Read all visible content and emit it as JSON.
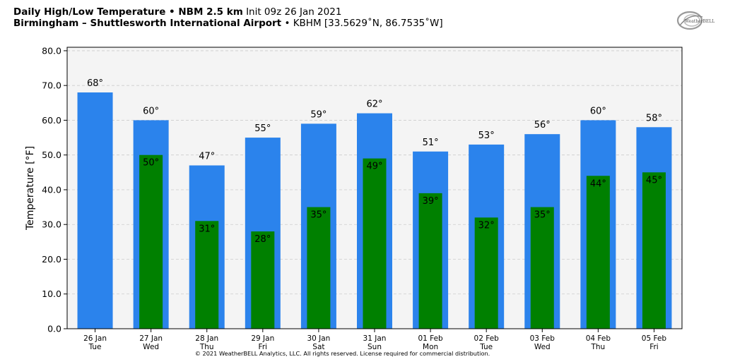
{
  "header": {
    "title_bold": "Daily High/Low Temperature • NBM 2.5 km",
    "title_init": "Init 09z 26 Jan 2021",
    "location_bold": "Birmingham – Shuttlesworth International Airport",
    "location_info": "• KBHM [33.5629˚N, 86.7535˚W]"
  },
  "logo": {
    "text": "WeatherBELL",
    "icon": "weatherbell-logo-icon"
  },
  "footer": {
    "copyright": "© 2021 WeatherBELL Analytics, LLC. All rights reserved. License required for commercial distribution."
  },
  "colors": {
    "high": "#2b83ec",
    "low": "#008000",
    "plot_bg": "#f4f4f4",
    "grid": "#cccccc"
  },
  "chart_data": {
    "type": "bar",
    "categories": [
      [
        "26 Jan",
        "Tue"
      ],
      [
        "27 Jan",
        "Wed"
      ],
      [
        "28 Jan",
        "Thu"
      ],
      [
        "29 Jan",
        "Fri"
      ],
      [
        "30 Jan",
        "Sat"
      ],
      [
        "31 Jan",
        "Sun"
      ],
      [
        "01 Feb",
        "Mon"
      ],
      [
        "02 Feb",
        "Tue"
      ],
      [
        "03 Feb",
        "Wed"
      ],
      [
        "04 Feb",
        "Thu"
      ],
      [
        "05 Feb",
        "Fri"
      ]
    ],
    "series": [
      {
        "values": [
          68,
          60,
          47,
          55,
          59,
          62,
          51,
          53,
          56,
          60,
          58
        ],
        "labels": [
          "68°",
          "60°",
          "47°",
          "55°",
          "59°",
          "62°",
          "51°",
          "53°",
          "56°",
          "60°",
          "58°"
        ]
      },
      {
        "values": [
          null,
          50,
          31,
          28,
          35,
          49,
          39,
          32,
          35,
          44,
          45
        ],
        "labels": [
          "",
          "50°",
          "31°",
          "28°",
          "35°",
          "49°",
          "39°",
          "32°",
          "35°",
          "44°",
          "45°"
        ]
      }
    ],
    "ylabel": "Temperature [°F]",
    "ylim": [
      0,
      81
    ],
    "yticks": [
      0,
      10,
      20,
      30,
      40,
      50,
      60,
      70,
      80
    ],
    "ytick_labels": [
      "0.0",
      "10.0",
      "20.0",
      "30.0",
      "40.0",
      "50.0",
      "60.0",
      "70.0",
      "80.0"
    ],
    "grid": true,
    "legend": "none"
  }
}
